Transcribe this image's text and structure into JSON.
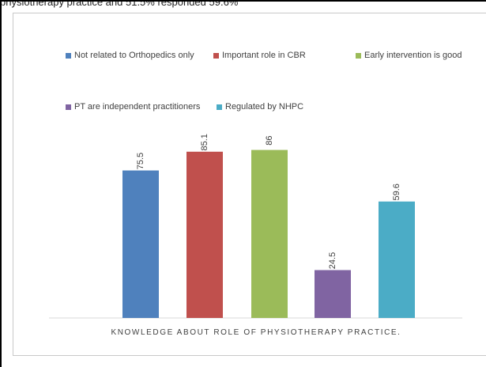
{
  "header_fragment": "physiotherapy practice and 51.5% responded 59.6% ",
  "chart_data": {
    "type": "bar",
    "title": "",
    "xlabel": "KNOWLEDGE ABOUT ROLE OF PHYSIOTHERAPY PRACTICE.",
    "ylabel": "",
    "ylim": [
      0,
      100
    ],
    "grid": false,
    "legend_position": "top",
    "series": [
      {
        "name": "Not related to Orthopedics only",
        "value": 75.5,
        "color": "#4f81bd"
      },
      {
        "name": "Important role in CBR",
        "value": 85.1,
        "color": "#c0504d"
      },
      {
        "name": "Early intervention is good",
        "value": 86,
        "color": "#9bbb59"
      },
      {
        "name": "PT are independent practitioners",
        "value": 24.5,
        "color": "#8064a2"
      },
      {
        "name": "Regulated by NHPC",
        "value": 59.6,
        "color": "#4bacc6"
      }
    ]
  }
}
